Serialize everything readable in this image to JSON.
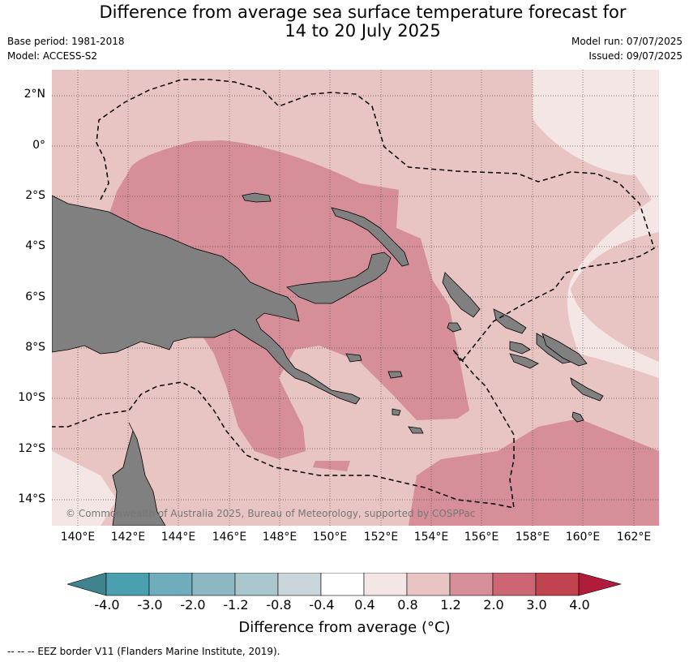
{
  "title_line1": "Difference from average sea surface temperature forecast for",
  "title_line2": "14 to 20 July 2025",
  "base_period": "Base period: 1981-2018",
  "model": "Model: ACCESS-S2",
  "model_run": "Model run: 07/07/2025",
  "issued": "Issued: 09/07/2025",
  "copyright": "© Commonwealth of Australia 2025, Bureau of Meteorology, supported by COSPPac",
  "latitude_labels": [
    "2°N",
    "0°",
    "2°S",
    "4°S",
    "6°S",
    "8°S",
    "10°S",
    "12°S",
    "14°S"
  ],
  "longitude_labels": [
    "140°E",
    "142°E",
    "144°E",
    "146°E",
    "148°E",
    "150°E",
    "152°E",
    "154°E",
    "156°E",
    "158°E",
    "160°E",
    "162°E"
  ],
  "colorbar": {
    "title": "Difference from average (°C)",
    "ticks": [
      "-4.0",
      "-3.0",
      "-2.0",
      "-1.2",
      "-0.8",
      "-0.4",
      "0.4",
      "0.8",
      "1.2",
      "2.0",
      "3.0",
      "4.0"
    ],
    "colors": [
      "#3f838d",
      "#4ba0b0",
      "#6fadbd",
      "#8db8c3",
      "#a8c6cb",
      "#cad6dc",
      "#ffffff",
      "#f4e6e4",
      "#e8c5c2",
      "#d68e98",
      "#cc6672",
      "#c1434f",
      "#b01c3a"
    ]
  },
  "footnote": "--  --  -- EEZ border V11 (Flanders Marine Institute, 2019).",
  "map_colors": {
    "anomaly_0_4_0_8": "#f4e6e4",
    "anomaly_0_8_1_2": "#e8c5c2",
    "anomaly_1_2_2_0": "#d68e98",
    "land": "#808080"
  }
}
